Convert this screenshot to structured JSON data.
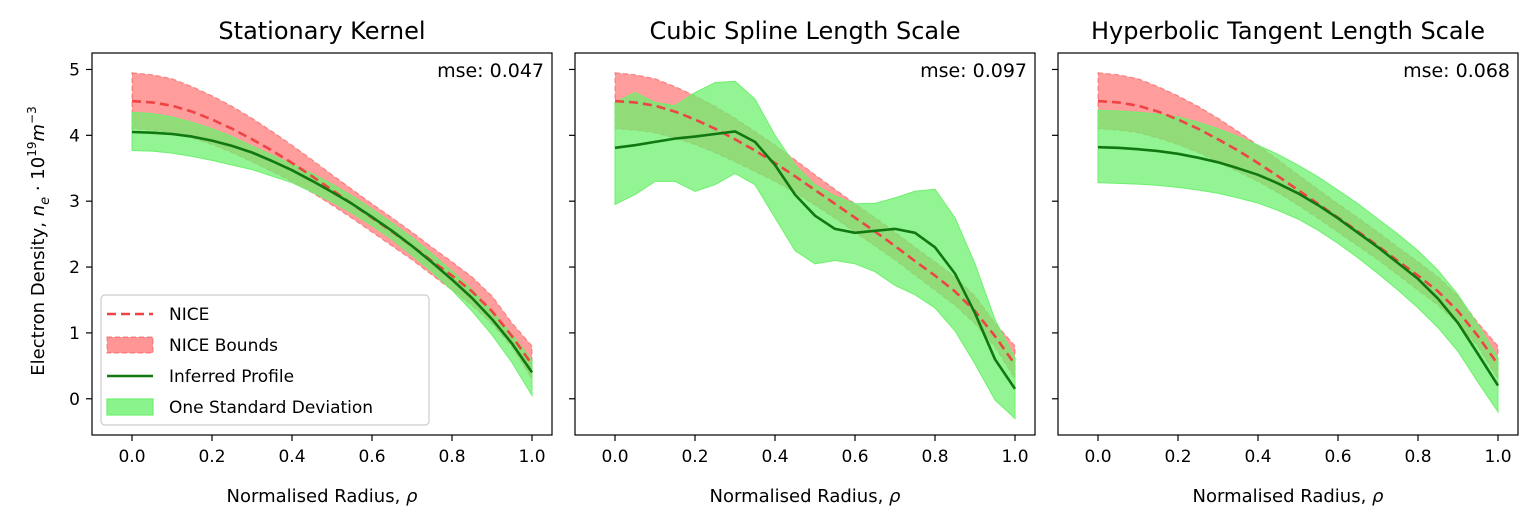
{
  "figure": {
    "ylabel": "Electron Density, n_e · 10^19 m^-3",
    "ylabel_parts": {
      "main": "Electron Density, ",
      "var": "n",
      "var_sub": "e",
      "mid": " · 10",
      "exp": "19",
      "unit": "m",
      "unit_exp": "−3"
    }
  },
  "legend": {
    "position": "lower-left",
    "entries": [
      {
        "label": "NICE",
        "style": "dashed-line",
        "color": "#ee4444"
      },
      {
        "label": "NICE Bounds",
        "style": "patch",
        "color": "#ff7b7b"
      },
      {
        "label": "Inferred Profile",
        "style": "solid-line",
        "color": "#117711"
      },
      {
        "label": "One Standard Deviation",
        "style": "patch",
        "color": "#6ef06e"
      }
    ]
  },
  "colors": {
    "nice_line": "#ee4444",
    "nice_band": "#ff7b7b",
    "inferred_line": "#117711",
    "std_band": "#6ef06e"
  },
  "chart_data": [
    {
      "type": "line",
      "title": "Stationary Kernel",
      "xlabel": "Normalised Radius, ρ",
      "ylabel": "Electron Density, n_e · 10^19 m^-3",
      "annotation": "mse: 0.047",
      "xlim": [
        -0.1,
        1.05
      ],
      "ylim": [
        -0.55,
        5.25
      ],
      "xticks": [
        0.0,
        0.2,
        0.4,
        0.6,
        0.8,
        1.0
      ],
      "xtick_labels": [
        "0.0",
        "0.2",
        "0.4",
        "0.6",
        "0.8",
        "1.0"
      ],
      "yticks": [
        0,
        1,
        2,
        3,
        4,
        5
      ],
      "ytick_labels": [
        "0",
        "1",
        "2",
        "3",
        "4",
        "5"
      ],
      "grid": false,
      "x": [
        0.0,
        0.05,
        0.1,
        0.15,
        0.2,
        0.25,
        0.3,
        0.35,
        0.4,
        0.45,
        0.5,
        0.55,
        0.6,
        0.65,
        0.7,
        0.75,
        0.8,
        0.85,
        0.9,
        0.95,
        1.0
      ],
      "series": [
        {
          "name": "NICE",
          "values": [
            4.52,
            4.5,
            4.45,
            4.36,
            4.24,
            4.1,
            3.94,
            3.77,
            3.58,
            3.38,
            3.17,
            2.96,
            2.75,
            2.54,
            2.32,
            2.09,
            1.87,
            1.63,
            1.33,
            0.95,
            0.52
          ]
        },
        {
          "name": "NICE Bounds",
          "lower": [
            4.1,
            4.08,
            4.04,
            3.96,
            3.86,
            3.74,
            3.6,
            3.45,
            3.3,
            3.13,
            2.94,
            2.74,
            2.53,
            2.32,
            2.11,
            1.88,
            1.65,
            1.42,
            1.14,
            0.79,
            0.3
          ],
          "upper": [
            4.95,
            4.92,
            4.86,
            4.74,
            4.6,
            4.44,
            4.26,
            4.06,
            3.85,
            3.63,
            3.4,
            3.18,
            2.96,
            2.75,
            2.53,
            2.3,
            2.08,
            1.85,
            1.56,
            1.15,
            0.8
          ]
        },
        {
          "name": "Inferred Profile",
          "values": [
            4.05,
            4.04,
            4.02,
            3.98,
            3.92,
            3.84,
            3.74,
            3.61,
            3.47,
            3.31,
            3.14,
            2.96,
            2.76,
            2.55,
            2.32,
            2.07,
            1.81,
            1.53,
            1.21,
            0.84,
            0.4
          ]
        },
        {
          "name": "One Standard Deviation",
          "lower": [
            3.77,
            3.76,
            3.73,
            3.68,
            3.62,
            3.55,
            3.48,
            3.38,
            3.28,
            3.14,
            2.99,
            2.82,
            2.63,
            2.42,
            2.18,
            1.93,
            1.65,
            1.33,
            0.97,
            0.55,
            0.05
          ],
          "upper": [
            4.35,
            4.33,
            4.28,
            4.2,
            4.1,
            3.98,
            3.84,
            3.7,
            3.56,
            3.42,
            3.26,
            3.08,
            2.88,
            2.67,
            2.45,
            2.2,
            1.94,
            1.66,
            1.33,
            0.98,
            0.58
          ]
        }
      ]
    },
    {
      "type": "line",
      "title": "Cubic Spline Length Scale",
      "xlabel": "Normalised Radius, ρ",
      "annotation": "mse: 0.097",
      "xlim": [
        -0.1,
        1.05
      ],
      "ylim": [
        -0.55,
        5.25
      ],
      "xticks": [
        0.0,
        0.2,
        0.4,
        0.6,
        0.8,
        1.0
      ],
      "xtick_labels": [
        "0.0",
        "0.2",
        "0.4",
        "0.6",
        "0.8",
        "1.0"
      ],
      "yticks": [
        0,
        1,
        2,
        3,
        4,
        5
      ],
      "ytick_labels": [],
      "grid": false,
      "x": [
        0.0,
        0.05,
        0.1,
        0.15,
        0.2,
        0.25,
        0.3,
        0.35,
        0.4,
        0.45,
        0.5,
        0.55,
        0.6,
        0.65,
        0.7,
        0.75,
        0.8,
        0.85,
        0.9,
        0.95,
        1.0
      ],
      "series": [
        {
          "name": "NICE",
          "values": [
            4.52,
            4.5,
            4.45,
            4.36,
            4.24,
            4.1,
            3.94,
            3.77,
            3.58,
            3.38,
            3.17,
            2.96,
            2.75,
            2.54,
            2.32,
            2.09,
            1.87,
            1.63,
            1.33,
            0.95,
            0.52
          ]
        },
        {
          "name": "NICE Bounds",
          "lower": [
            4.1,
            4.08,
            4.04,
            3.96,
            3.86,
            3.74,
            3.6,
            3.45,
            3.3,
            3.13,
            2.94,
            2.74,
            2.53,
            2.32,
            2.11,
            1.88,
            1.65,
            1.42,
            1.14,
            0.79,
            0.3
          ],
          "upper": [
            4.95,
            4.92,
            4.86,
            4.74,
            4.6,
            4.44,
            4.26,
            4.06,
            3.85,
            3.63,
            3.4,
            3.18,
            2.96,
            2.75,
            2.53,
            2.3,
            2.08,
            1.85,
            1.56,
            1.15,
            0.8
          ]
        },
        {
          "name": "Inferred Profile",
          "values": [
            3.81,
            3.85,
            3.9,
            3.95,
            3.98,
            4.02,
            4.06,
            3.9,
            3.55,
            3.1,
            2.78,
            2.58,
            2.52,
            2.55,
            2.58,
            2.52,
            2.3,
            1.9,
            1.3,
            0.6,
            0.15
          ]
        },
        {
          "name": "One Standard Deviation",
          "lower": [
            2.95,
            3.1,
            3.3,
            3.3,
            3.15,
            3.25,
            3.42,
            3.25,
            2.75,
            2.25,
            2.05,
            2.1,
            2.05,
            1.93,
            1.72,
            1.58,
            1.38,
            1.03,
            0.53,
            -0.02,
            -0.3
          ],
          "upper": [
            4.5,
            4.65,
            4.5,
            4.45,
            4.65,
            4.8,
            4.82,
            4.55,
            4.0,
            3.55,
            3.25,
            3.08,
            2.96,
            2.97,
            3.05,
            3.15,
            3.18,
            2.75,
            2.05,
            1.2,
            0.62
          ]
        }
      ]
    },
    {
      "type": "line",
      "title": "Hyperbolic Tangent Length Scale",
      "xlabel": "Normalised Radius, ρ",
      "annotation": "mse: 0.068",
      "xlim": [
        -0.1,
        1.05
      ],
      "ylim": [
        -0.55,
        5.25
      ],
      "xticks": [
        0.0,
        0.2,
        0.4,
        0.6,
        0.8,
        1.0
      ],
      "xtick_labels": [
        "0.0",
        "0.2",
        "0.4",
        "0.6",
        "0.8",
        "1.0"
      ],
      "yticks": [
        0,
        1,
        2,
        3,
        4,
        5
      ],
      "ytick_labels": [],
      "grid": false,
      "x": [
        0.0,
        0.05,
        0.1,
        0.15,
        0.2,
        0.25,
        0.3,
        0.35,
        0.4,
        0.45,
        0.5,
        0.55,
        0.6,
        0.65,
        0.7,
        0.75,
        0.8,
        0.85,
        0.9,
        0.95,
        1.0
      ],
      "series": [
        {
          "name": "NICE",
          "values": [
            4.52,
            4.5,
            4.45,
            4.36,
            4.24,
            4.1,
            3.94,
            3.77,
            3.58,
            3.38,
            3.17,
            2.96,
            2.75,
            2.54,
            2.32,
            2.09,
            1.87,
            1.63,
            1.33,
            0.95,
            0.52
          ]
        },
        {
          "name": "NICE Bounds",
          "lower": [
            4.1,
            4.08,
            4.04,
            3.96,
            3.86,
            3.74,
            3.6,
            3.45,
            3.3,
            3.13,
            2.94,
            2.74,
            2.53,
            2.32,
            2.11,
            1.88,
            1.65,
            1.42,
            1.14,
            0.79,
            0.3
          ],
          "upper": [
            4.95,
            4.92,
            4.86,
            4.74,
            4.6,
            4.44,
            4.26,
            4.06,
            3.85,
            3.63,
            3.4,
            3.18,
            2.96,
            2.75,
            2.53,
            2.3,
            2.08,
            1.85,
            1.56,
            1.15,
            0.8
          ]
        },
        {
          "name": "Inferred Profile",
          "values": [
            3.82,
            3.81,
            3.79,
            3.76,
            3.72,
            3.66,
            3.59,
            3.5,
            3.4,
            3.27,
            3.12,
            2.94,
            2.74,
            2.52,
            2.3,
            2.06,
            1.82,
            1.52,
            1.15,
            0.68,
            0.2
          ]
        },
        {
          "name": "One Standard Deviation",
          "lower": [
            3.28,
            3.27,
            3.26,
            3.24,
            3.21,
            3.17,
            3.12,
            3.05,
            2.97,
            2.86,
            2.73,
            2.56,
            2.36,
            2.14,
            1.9,
            1.65,
            1.38,
            1.08,
            0.72,
            0.25,
            -0.2
          ]
        },
        {
          "name": "One Standard Deviation",
          "upper": [
            4.38,
            4.37,
            4.35,
            4.32,
            4.28,
            4.2,
            4.1,
            3.98,
            3.85,
            3.71,
            3.55,
            3.37,
            3.17,
            2.96,
            2.73,
            2.5,
            2.25,
            1.95,
            1.58,
            1.12,
            0.62
          ]
        }
      ]
    }
  ]
}
